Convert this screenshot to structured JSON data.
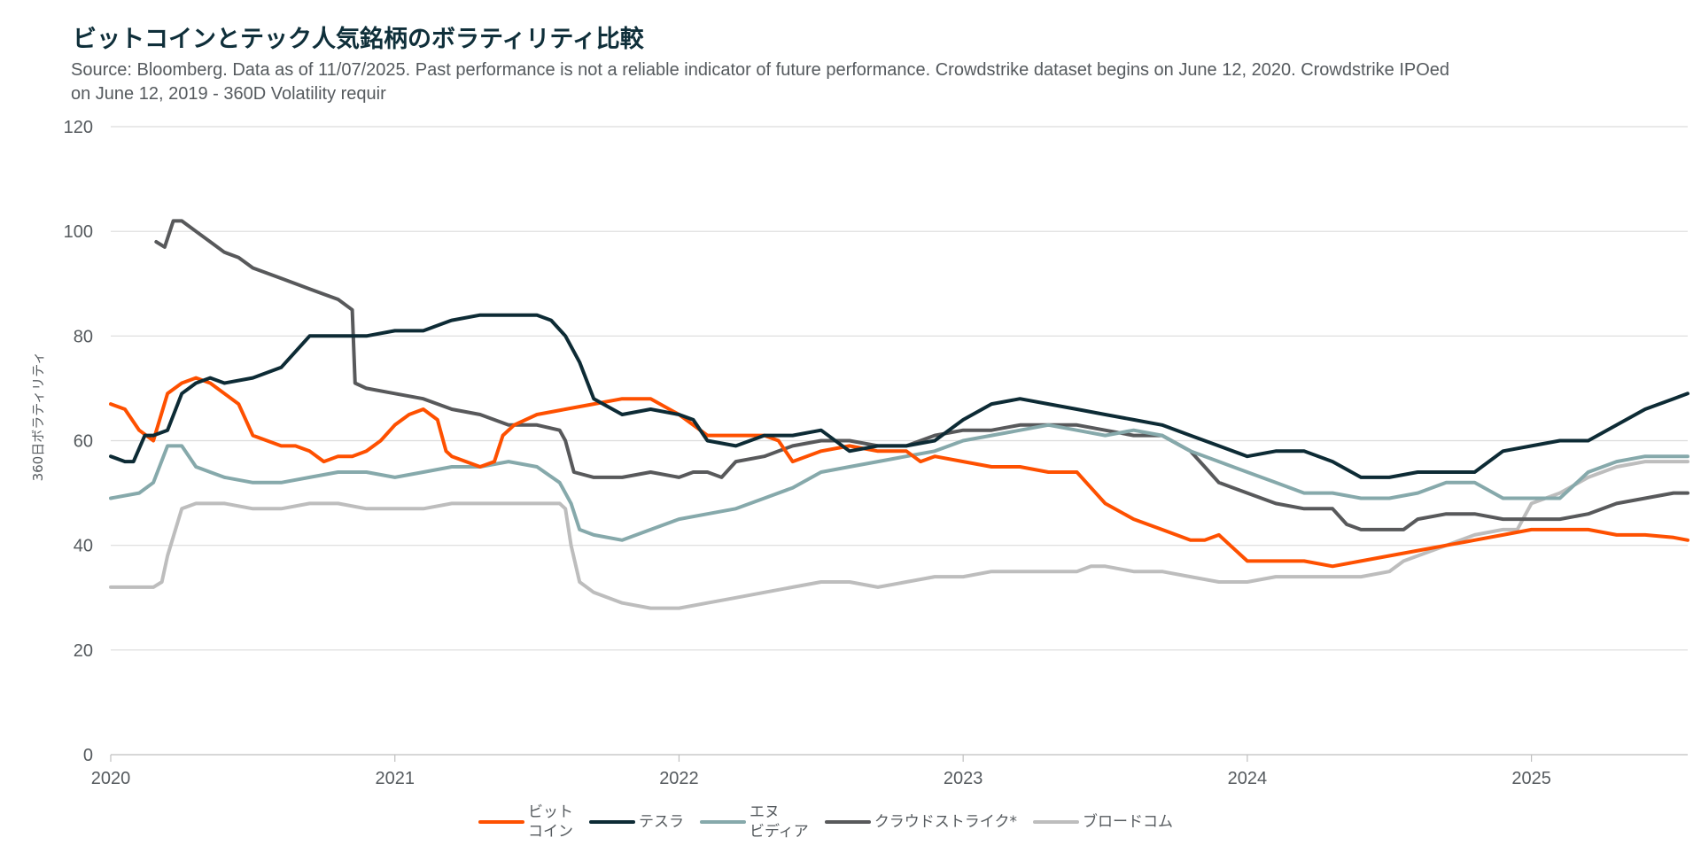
{
  "title": "ビットコインとテック人気銘柄のボラティリティ比較",
  "subtitle": "Source: Bloomberg. Data as of 11/07/2025. Past performance is not a reliable indicator of future performance. Crowdstrike dataset begins on June 12, 2020. Crowdstrike IPOed on June 12, 2019 - 360D Volatility requir",
  "chart_data": {
    "type": "line",
    "title": "ビットコインとテック人気銘柄のボラティリティ比較",
    "ylabel": "360日ボラティリティ",
    "xlabel": "",
    "ylim": [
      0,
      120
    ],
    "xlim": [
      2020.0,
      2025.55
    ],
    "yticks": [
      "0",
      "20",
      "40",
      "60",
      "80",
      "100",
      "120"
    ],
    "xticks": [
      "2020",
      "2021",
      "2022",
      "2023",
      "2024",
      "2025"
    ],
    "grid": true,
    "legend_position": "bottom",
    "series": [
      {
        "name": "ビット\nコイン",
        "color": "#fe5000",
        "x": [
          2020.0,
          2020.05,
          2020.1,
          2020.15,
          2020.2,
          2020.25,
          2020.3,
          2020.35,
          2020.4,
          2020.45,
          2020.5,
          2020.55,
          2020.6,
          2020.65,
          2020.7,
          2020.75,
          2020.8,
          2020.85,
          2020.9,
          2020.95,
          2021.0,
          2021.05,
          2021.1,
          2021.15,
          2021.18,
          2021.2,
          2021.25,
          2021.3,
          2021.35,
          2021.38,
          2021.42,
          2021.5,
          2021.6,
          2021.7,
          2021.8,
          2021.9,
          2022.0,
          2022.05,
          2022.1,
          2022.2,
          2022.3,
          2022.35,
          2022.4,
          2022.5,
          2022.6,
          2022.7,
          2022.8,
          2022.85,
          2022.9,
          2023.0,
          2023.1,
          2023.2,
          2023.3,
          2023.4,
          2023.45,
          2023.5,
          2023.6,
          2023.7,
          2023.8,
          2023.85,
          2023.9,
          2024.0,
          2024.1,
          2024.2,
          2024.3,
          2024.4,
          2024.5,
          2024.6,
          2024.7,
          2024.8,
          2024.9,
          2025.0,
          2025.1,
          2025.2,
          2025.3,
          2025.4,
          2025.5,
          2025.55
        ],
        "values": [
          67,
          66,
          62,
          60,
          69,
          71,
          72,
          71,
          69,
          67,
          61,
          60,
          59,
          59,
          58,
          56,
          57,
          57,
          58,
          60,
          63,
          65,
          66,
          64,
          58,
          57,
          56,
          55,
          56,
          61,
          63,
          65,
          66,
          67,
          68,
          68,
          65,
          63,
          61,
          61,
          61,
          60,
          56,
          58,
          59,
          58,
          58,
          56,
          57,
          56,
          55,
          55,
          54,
          54,
          51,
          48,
          45,
          43,
          41,
          41,
          42,
          37,
          37,
          37,
          36,
          37,
          38,
          39,
          40,
          41,
          42,
          43,
          43,
          43,
          42,
          42,
          41.5,
          41
        ]
      },
      {
        "name": "テスラ",
        "color": "#0d2b35",
        "x": [
          2020.0,
          2020.05,
          2020.08,
          2020.12,
          2020.15,
          2020.2,
          2020.25,
          2020.3,
          2020.35,
          2020.4,
          2020.5,
          2020.6,
          2020.7,
          2020.8,
          2020.9,
          2021.0,
          2021.1,
          2021.2,
          2021.3,
          2021.4,
          2021.5,
          2021.55,
          2021.6,
          2021.65,
          2021.7,
          2021.8,
          2021.9,
          2022.0,
          2022.05,
          2022.1,
          2022.2,
          2022.3,
          2022.4,
          2022.5,
          2022.6,
          2022.7,
          2022.8,
          2022.9,
          2023.0,
          2023.1,
          2023.2,
          2023.3,
          2023.4,
          2023.5,
          2023.6,
          2023.7,
          2023.8,
          2023.9,
          2024.0,
          2024.1,
          2024.2,
          2024.3,
          2024.4,
          2024.5,
          2024.6,
          2024.7,
          2024.8,
          2024.9,
          2025.0,
          2025.1,
          2025.2,
          2025.3,
          2025.4,
          2025.5,
          2025.55
        ],
        "values": [
          57,
          56,
          56,
          61,
          61,
          62,
          69,
          71,
          72,
          71,
          72,
          74,
          80,
          80,
          80,
          81,
          81,
          83,
          84,
          84,
          84,
          83,
          80,
          75,
          68,
          65,
          66,
          65,
          64,
          60,
          59,
          61,
          61,
          62,
          58,
          59,
          59,
          60,
          64,
          67,
          68,
          67,
          66,
          65,
          64,
          63,
          61,
          59,
          57,
          58,
          58,
          56,
          53,
          53,
          54,
          54,
          54,
          58,
          59,
          60,
          60,
          63,
          66,
          68,
          69
        ]
      },
      {
        "name": "エヌ\nビディア",
        "color": "#86a9ab",
        "x": [
          2020.0,
          2020.1,
          2020.15,
          2020.2,
          2020.25,
          2020.3,
          2020.35,
          2020.4,
          2020.5,
          2020.6,
          2020.7,
          2020.8,
          2020.9,
          2021.0,
          2021.1,
          2021.2,
          2021.3,
          2021.4,
          2021.5,
          2021.58,
          2021.62,
          2021.65,
          2021.7,
          2021.8,
          2021.9,
          2022.0,
          2022.1,
          2022.2,
          2022.3,
          2022.4,
          2022.5,
          2022.6,
          2022.7,
          2022.8,
          2022.9,
          2023.0,
          2023.1,
          2023.2,
          2023.3,
          2023.4,
          2023.5,
          2023.6,
          2023.7,
          2023.8,
          2023.9,
          2024.0,
          2024.1,
          2024.2,
          2024.3,
          2024.4,
          2024.5,
          2024.6,
          2024.7,
          2024.8,
          2024.9,
          2025.0,
          2025.1,
          2025.2,
          2025.3,
          2025.4,
          2025.5,
          2025.55
        ],
        "values": [
          49,
          50,
          52,
          59,
          59,
          55,
          54,
          53,
          52,
          52,
          53,
          54,
          54,
          53,
          54,
          55,
          55,
          56,
          55,
          52,
          48,
          43,
          42,
          41,
          43,
          45,
          46,
          47,
          49,
          51,
          54,
          55,
          56,
          57,
          58,
          60,
          61,
          62,
          63,
          62,
          61,
          62,
          61,
          58,
          56,
          54,
          52,
          50,
          50,
          49,
          49,
          50,
          52,
          52,
          49,
          49,
          49,
          54,
          56,
          57,
          57,
          57
        ]
      },
      {
        "name": "クラウドストライク*",
        "color": "#58595b",
        "x": [
          2020.16,
          2020.19,
          2020.22,
          2020.25,
          2020.3,
          2020.35,
          2020.4,
          2020.45,
          2020.5,
          2020.55,
          2020.6,
          2020.65,
          2020.7,
          2020.75,
          2020.8,
          2020.85,
          2020.86,
          2020.9,
          2021.0,
          2021.1,
          2021.2,
          2021.3,
          2021.4,
          2021.5,
          2021.58,
          2021.6,
          2021.63,
          2021.7,
          2021.8,
          2021.9,
          2022.0,
          2022.05,
          2022.1,
          2022.15,
          2022.2,
          2022.3,
          2022.35,
          2022.4,
          2022.5,
          2022.6,
          2022.7,
          2022.8,
          2022.9,
          2023.0,
          2023.1,
          2023.2,
          2023.3,
          2023.4,
          2023.5,
          2023.6,
          2023.7,
          2023.8,
          2023.85,
          2023.9,
          2024.0,
          2024.1,
          2024.2,
          2024.3,
          2024.35,
          2024.4,
          2024.5,
          2024.55,
          2024.6,
          2024.7,
          2024.8,
          2024.9,
          2025.0,
          2025.1,
          2025.2,
          2025.3,
          2025.4,
          2025.5,
          2025.55
        ],
        "values": [
          98,
          97,
          102,
          102,
          100,
          98,
          96,
          95,
          93,
          92,
          91,
          90,
          89,
          88,
          87,
          85,
          71,
          70,
          69,
          68,
          66,
          65,
          63,
          63,
          62,
          60,
          54,
          53,
          53,
          54,
          53,
          54,
          54,
          53,
          56,
          57,
          58,
          59,
          60,
          60,
          59,
          59,
          61,
          62,
          62,
          63,
          63,
          63,
          62,
          61,
          61,
          58,
          55,
          52,
          50,
          48,
          47,
          47,
          44,
          43,
          43,
          43,
          45,
          46,
          46,
          45,
          45,
          45,
          46,
          48,
          49,
          50,
          50
        ]
      },
      {
        "name": "ブロードコム",
        "color": "#bdbdbd",
        "x": [
          2020.0,
          2020.1,
          2020.15,
          2020.18,
          2020.2,
          2020.25,
          2020.3,
          2020.4,
          2020.5,
          2020.6,
          2020.7,
          2020.8,
          2020.9,
          2021.0,
          2021.1,
          2021.2,
          2021.3,
          2021.4,
          2021.5,
          2021.58,
          2021.6,
          2021.62,
          2021.65,
          2021.7,
          2021.8,
          2021.9,
          2022.0,
          2022.1,
          2022.2,
          2022.3,
          2022.4,
          2022.5,
          2022.6,
          2022.7,
          2022.8,
          2022.9,
          2023.0,
          2023.1,
          2023.2,
          2023.3,
          2023.4,
          2023.45,
          2023.5,
          2023.6,
          2023.7,
          2023.8,
          2023.9,
          2024.0,
          2024.1,
          2024.2,
          2024.3,
          2024.4,
          2024.5,
          2024.55,
          2024.6,
          2024.7,
          2024.8,
          2024.9,
          2024.95,
          2025.0,
          2025.1,
          2025.2,
          2025.3,
          2025.4,
          2025.5,
          2025.55
        ],
        "values": [
          32,
          32,
          32,
          33,
          38,
          47,
          48,
          48,
          47,
          47,
          48,
          48,
          47,
          47,
          47,
          48,
          48,
          48,
          48,
          48,
          47,
          40,
          33,
          31,
          29,
          28,
          28,
          29,
          30,
          31,
          32,
          33,
          33,
          32,
          33,
          34,
          34,
          35,
          35,
          35,
          35,
          36,
          36,
          35,
          35,
          34,
          33,
          33,
          34,
          34,
          34,
          34,
          35,
          37,
          38,
          40,
          42,
          43,
          43,
          48,
          50,
          53,
          55,
          56,
          56,
          56
        ]
      }
    ]
  }
}
